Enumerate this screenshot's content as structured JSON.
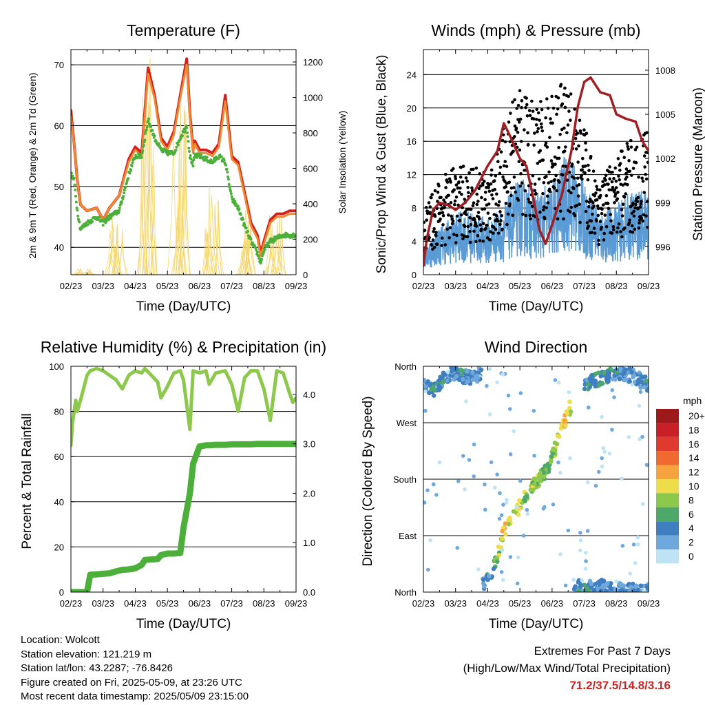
{
  "figure": {
    "info": {
      "location": "Location: Wolcott",
      "elevation": "Station elevation: 121.219 m",
      "latlon": "Station lat/lon: 43.2287; -76.8426",
      "created": "Figure created on Fri, 2025-05-09, at 23:26 UTC",
      "recent": "Most recent data timestamp: 2025/05/09 23:15:00"
    },
    "extremes": {
      "title": "Extremes For Past 7 Days",
      "subtitle": "(High/Low/Max Wind/Total Precipitation)",
      "values": "71.2/37.5/14.8/3.16"
    }
  },
  "chart_data": [
    {
      "type": "line",
      "title": "Temperature (F)",
      "xlabel": "Time (Day/UTC)",
      "ylabel": "2m & 9m T (Red, Orange) & 2m Td (Green)",
      "y2label": "Solar Insolation (Yellow)",
      "xticks": [
        "02/23",
        "03/23",
        "04/23",
        "05/23",
        "06/23",
        "07/23",
        "08/23",
        "09/23"
      ],
      "ylim": [
        35.5,
        72.5
      ],
      "yticks": [
        40,
        50,
        60,
        70
      ],
      "y2lim": [
        0,
        1270
      ],
      "y2ticks": [
        0,
        200,
        400,
        600,
        800,
        1000,
        1200
      ],
      "x": [
        0,
        0.1,
        0.2,
        0.3,
        0.5,
        0.8,
        1.0,
        1.2,
        1.5,
        1.8,
        2.0,
        2.2,
        2.4,
        2.6,
        2.8,
        3.0,
        3.2,
        3.4,
        3.6,
        3.7,
        3.8,
        3.85,
        4.0,
        4.2,
        4.4,
        4.6,
        4.8,
        5.0,
        5.2,
        5.4,
        5.6,
        5.8,
        5.9,
        6.0,
        6.2,
        6.4,
        6.6,
        6.8,
        7.0
      ],
      "grid": true,
      "series": [
        {
          "color": "#d42020",
          "values": [
            62.5,
            57,
            51,
            47,
            46,
            46.5,
            44.5,
            46.5,
            48.5,
            54.5,
            56.5,
            55.5,
            69.5,
            65,
            58,
            56.5,
            59,
            65,
            71,
            62,
            56,
            57.5,
            56,
            56,
            55.5,
            57,
            65,
            55,
            54,
            49,
            44,
            42,
            39,
            41,
            44.5,
            45.5,
            45.5,
            46,
            46
          ]
        },
        {
          "color": "#f08a30",
          "values": [
            61.5,
            57,
            51,
            47,
            46,
            46.5,
            44.5,
            46.5,
            48.5,
            54,
            56,
            55,
            68.5,
            64.5,
            57.5,
            56,
            58.5,
            64.5,
            70,
            61.5,
            55.5,
            57,
            55.5,
            55.5,
            55,
            56.5,
            64,
            54.5,
            53.5,
            48.5,
            43.5,
            41.5,
            38.5,
            40.5,
            44,
            45,
            45,
            45.5,
            45.5
          ]
        },
        {
          "color": "#4caf3a",
          "values": [
            52,
            51,
            46,
            43,
            44,
            45,
            44,
            45,
            46,
            52,
            55,
            55,
            61,
            58,
            56,
            55.5,
            55.5,
            58,
            60,
            55,
            53.5,
            55,
            55,
            54.5,
            54,
            55,
            54,
            48,
            46.5,
            43.5,
            41,
            39,
            37.5,
            39.5,
            41,
            41.5,
            42,
            42,
            42
          ]
        }
      ],
      "solar_color": "#f5d76e",
      "solar_peaks": [
        {
          "day": 0.4,
          "value": 35
        },
        {
          "day": 1.4,
          "value": 350
        },
        {
          "day": 2.4,
          "value": 1240
        },
        {
          "day": 3.4,
          "value": 1000
        },
        {
          "day": 4.4,
          "value": 500
        },
        {
          "day": 5.4,
          "value": 420
        },
        {
          "day": 6.4,
          "value": 360
        }
      ]
    },
    {
      "type": "line",
      "title": "Winds (mph) & Pressure (mb)",
      "xlabel": "Time (Day/UTC)",
      "ylabel": "Sonic/Prop Wind & Gust (Blue, Black)",
      "y2label": "Station Pressure (Maroon)",
      "xticks": [
        "02/23",
        "03/23",
        "04/23",
        "05/23",
        "06/23",
        "07/23",
        "08/23",
        "09/23"
      ],
      "ylim": [
        0,
        27
      ],
      "yticks": [
        0,
        4,
        8,
        12,
        16,
        20,
        24
      ],
      "y2lim": [
        994.1,
        1009.4
      ],
      "y2ticks": [
        996,
        999,
        1002,
        1005,
        1008
      ],
      "grid": true,
      "wind_color": "#5b9bd5",
      "gust_color": "#000000",
      "pressure_color": "#a01e24",
      "wind_envelope_x": [
        0,
        0.5,
        1.0,
        1.5,
        2.0,
        2.5,
        3.0,
        3.5,
        4.0,
        4.5,
        5.0,
        5.5,
        6.0,
        6.5,
        7.0
      ],
      "wind_envelope_mean": [
        2,
        3.5,
        4.5,
        4.5,
        4,
        5,
        7,
        6,
        6.5,
        9,
        6.5,
        4.5,
        5,
        6,
        6
      ],
      "gust_envelope_mean": [
        5,
        7.5,
        8.5,
        8.5,
        8,
        12,
        15,
        13,
        14.5,
        15,
        11.5,
        7.5,
        9,
        11,
        11
      ],
      "pressure_x": [
        0,
        0.1,
        0.3,
        0.5,
        0.8,
        1.0,
        1.3,
        1.6,
        2.0,
        2.3,
        2.5,
        2.7,
        3.0,
        3.2,
        3.4,
        3.6,
        3.8,
        4.0,
        4.3,
        4.6,
        4.8,
        5.0,
        5.2,
        5.5,
        5.8,
        6.0,
        6.3,
        6.6,
        6.8,
        7.0
      ],
      "pressure_values": [
        994.7,
        996.5,
        998.5,
        999,
        998.8,
        998.5,
        999,
        999.8,
        1001.5,
        1002.5,
        1004.4,
        1003.5,
        1002,
        1001.5,
        999.5,
        997.2,
        996.2,
        997.5,
        999.5,
        1002.5,
        1005.5,
        1007.2,
        1007.5,
        1006.5,
        1006.3,
        1005,
        1004.7,
        1004.5,
        1003.2,
        1002.5
      ]
    },
    {
      "type": "line",
      "title": "Relative Humidity (%) & Precipitation (in)",
      "xlabel": "Time (Day/UTC)",
      "ylabel": "Percent & Total Rainfall",
      "xticks": [
        "02/23",
        "03/23",
        "04/23",
        "05/23",
        "06/23",
        "07/23",
        "08/23",
        "09/23"
      ],
      "ylim": [
        0,
        100
      ],
      "yticks": [
        0,
        20,
        40,
        60,
        80,
        100
      ],
      "y2lim": [
        0,
        4.57
      ],
      "y2ticks": [
        "0.0",
        "1.0",
        "2.0",
        "3.0",
        "4.0"
      ],
      "grid": true,
      "x": [
        0,
        0.05,
        0.15,
        0.2,
        0.3,
        0.5,
        0.6,
        0.8,
        1.0,
        1.2,
        1.4,
        1.6,
        1.8,
        2.0,
        2.2,
        2.3,
        2.5,
        2.7,
        2.8,
        3.0,
        3.2,
        3.4,
        3.5,
        3.7,
        3.8,
        4.0,
        4.2,
        4.3,
        4.5,
        4.8,
        5.0,
        5.2,
        5.4,
        5.6,
        5.8,
        6.0,
        6.2,
        6.4,
        6.6,
        6.8,
        6.9,
        7.0
      ],
      "series": [
        {
          "name": "Relative Humidity",
          "color": "#8cc84b",
          "values": [
            65,
            75,
            85,
            80,
            85,
            96,
            98,
            99,
            98,
            96,
            94,
            90,
            96,
            98,
            97,
            99,
            96,
            93,
            86,
            91,
            97,
            98,
            94,
            72,
            98,
            97,
            98,
            92,
            97,
            98,
            92,
            80,
            95,
            98,
            98,
            90,
            76,
            98,
            97,
            88,
            84,
            86
          ]
        },
        {
          "name": "Total Rainfall",
          "color": "#4caf3a",
          "values": [
            0,
            0,
            0,
            0,
            0,
            0,
            0.35,
            0.36,
            0.37,
            0.38,
            0.42,
            0.45,
            0.46,
            0.48,
            0.55,
            0.65,
            0.66,
            0.67,
            0.75,
            0.78,
            0.78,
            0.79,
            1.3,
            2.0,
            2.6,
            2.95,
            2.97,
            2.97,
            2.98,
            2.98,
            2.99,
            2.99,
            2.99,
            2.99,
            3.0,
            3.0,
            3.0,
            3.0,
            3.0,
            3.0,
            3.0,
            3.0
          ]
        }
      ]
    },
    {
      "type": "scatter",
      "title": "Wind Direction",
      "xlabel": "Time (Day/UTC)",
      "ylabel": "Direction (Colored By Speed)",
      "xticks": [
        "02/23",
        "03/23",
        "04/23",
        "05/23",
        "06/23",
        "07/23",
        "08/23",
        "09/23"
      ],
      "ylim": [
        0,
        360
      ],
      "yticks": [
        "North",
        "East",
        "South",
        "West",
        "North"
      ],
      "grid": true,
      "legend": {
        "title": "mph",
        "labels": [
          "20+",
          "18",
          "16",
          "14",
          "12",
          "10",
          "8",
          "6",
          "4",
          "2",
          "0"
        ],
        "colors": [
          "#9e1a1a",
          "#c92027",
          "#e03a2e",
          "#f06a2f",
          "#f5a23f",
          "#eedc4a",
          "#8cc84b",
          "#4ea86a",
          "#3f7fbf",
          "#6fa8dc",
          "#bde3f5"
        ],
        "position": "right"
      },
      "tracks": [
        {
          "x": [
            0.0,
            0.3,
            0.6,
            0.9,
            1.2,
            1.5,
            1.8
          ],
          "dir": [
            330,
            320,
            340,
            350,
            345,
            340,
            350
          ],
          "speed": [
            2,
            5,
            4,
            3,
            4,
            3,
            2
          ]
        },
        {
          "x": [
            1.8,
            2.2,
            2.5,
            2.8,
            3.1,
            3.5,
            3.9,
            4.3,
            4.6
          ],
          "dir": [
            10,
            40,
            95,
            120,
            145,
            175,
            200,
            260,
            300
          ],
          "speed": [
            3,
            5,
            11,
            9,
            8,
            8,
            6,
            12,
            8
          ]
        },
        {
          "x": [
            4.6,
            5.0,
            5.5,
            6.0,
            6.5,
            7.0
          ],
          "dir": [
            15,
            5,
            10,
            3,
            3,
            3
          ],
          "speed": [
            4,
            4,
            3,
            3,
            3,
            2
          ]
        },
        {
          "x": [
            5.0,
            5.5,
            6.0,
            6.5,
            7.0
          ],
          "dir": [
            330,
            340,
            350,
            345,
            330
          ],
          "speed": [
            4,
            5,
            4,
            3,
            4
          ]
        }
      ]
    }
  ]
}
